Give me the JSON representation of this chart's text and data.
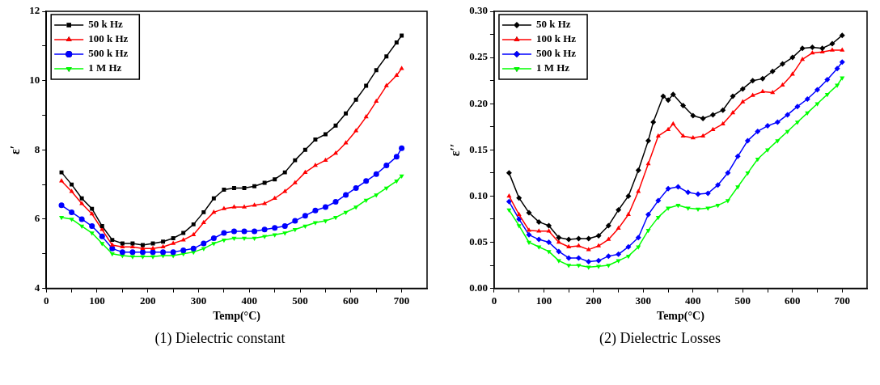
{
  "chart_data": [
    {
      "type": "line",
      "xlabel": "Temp(°C)",
      "ylabel": "ε′",
      "annotations": [
        "(1) Dielectric constant"
      ],
      "legend": "top left",
      "grid": false,
      "line_style": "solid",
      "xlim": [
        0,
        750
      ],
      "xticks": [
        0,
        {
          "value": 50,
          "label": null
        },
        100,
        {
          "value": 150,
          "label": null
        },
        200,
        {
          "value": 250,
          "label": null
        },
        300,
        {
          "value": 350,
          "label": null
        },
        400,
        {
          "value": 450,
          "label": null
        },
        500,
        {
          "value": 550,
          "label": null
        },
        600,
        {
          "value": 650,
          "label": null
        },
        700
      ],
      "ylim": [
        4,
        12
      ],
      "yticks": [
        4,
        {
          "value": 5,
          "label": null
        },
        6,
        {
          "value": 7,
          "label": null
        },
        8,
        {
          "value": 9,
          "label": null
        },
        10,
        {
          "value": 11,
          "label": null
        },
        12
      ],
      "x": [
        30,
        50,
        70,
        90,
        110,
        130,
        150,
        170,
        190,
        210,
        230,
        250,
        270,
        290,
        310,
        330,
        350,
        370,
        390,
        410,
        430,
        450,
        470,
        490,
        510,
        530,
        550,
        570,
        590,
        610,
        630,
        650,
        670,
        690,
        700
      ],
      "series": [
        {
          "name": "50 k Hz",
          "color": "#000000",
          "marker": "square",
          "values": [
            7.35,
            7.0,
            6.6,
            6.3,
            5.8,
            5.4,
            5.3,
            5.3,
            5.25,
            5.3,
            5.35,
            5.45,
            5.6,
            5.85,
            6.2,
            6.6,
            6.85,
            6.9,
            6.9,
            6.95,
            7.05,
            7.15,
            7.35,
            7.7,
            8.0,
            8.3,
            8.45,
            8.7,
            9.05,
            9.45,
            9.85,
            10.3,
            10.7,
            11.1,
            11.3
          ]
        },
        {
          "name": "100 k Hz",
          "color": "#ff0000",
          "marker": "triangle",
          "values": [
            7.1,
            6.8,
            6.45,
            6.15,
            5.7,
            5.25,
            5.2,
            5.2,
            5.15,
            5.15,
            5.2,
            5.3,
            5.4,
            5.55,
            5.9,
            6.2,
            6.3,
            6.35,
            6.35,
            6.4,
            6.45,
            6.6,
            6.8,
            7.05,
            7.35,
            7.55,
            7.7,
            7.9,
            8.2,
            8.55,
            8.95,
            9.4,
            9.85,
            10.15,
            10.35
          ]
        },
        {
          "name": "500 k Hz",
          "color": "#0000ff",
          "marker": "circle",
          "values": [
            6.4,
            6.2,
            6.0,
            5.8,
            5.5,
            5.15,
            5.05,
            5.05,
            5.05,
            5.05,
            5.05,
            5.05,
            5.1,
            5.15,
            5.3,
            5.45,
            5.6,
            5.65,
            5.65,
            5.65,
            5.7,
            5.75,
            5.8,
            5.95,
            6.1,
            6.25,
            6.35,
            6.5,
            6.7,
            6.9,
            7.1,
            7.3,
            7.55,
            7.8,
            8.05
          ]
        },
        {
          "name": "1 M Hz",
          "color": "#00ff00",
          "marker": "triangle-down",
          "values": [
            6.05,
            6.0,
            5.8,
            5.6,
            5.3,
            5.0,
            4.95,
            4.92,
            4.92,
            4.92,
            4.95,
            4.95,
            5.0,
            5.05,
            5.15,
            5.3,
            5.4,
            5.45,
            5.45,
            5.45,
            5.5,
            5.55,
            5.6,
            5.7,
            5.8,
            5.9,
            5.95,
            6.05,
            6.2,
            6.35,
            6.55,
            6.7,
            6.9,
            7.1,
            7.25
          ]
        }
      ]
    },
    {
      "type": "line",
      "xlabel": "Temp(°C)",
      "ylabel": "ε′′",
      "annotations": [
        "(2) Dielectric Losses"
      ],
      "legend": "top left",
      "grid": false,
      "line_style": "solid",
      "xlim": [
        0,
        750
      ],
      "xticks": [
        0,
        {
          "value": 50,
          "label": null
        },
        100,
        {
          "value": 150,
          "label": null
        },
        200,
        {
          "value": 250,
          "label": null
        },
        300,
        {
          "value": 350,
          "label": null
        },
        400,
        {
          "value": 450,
          "label": null
        },
        500,
        {
          "value": 550,
          "label": null
        },
        600,
        {
          "value": 650,
          "label": null
        },
        700
      ],
      "ylim": [
        0,
        0.3
      ],
      "yticks": [
        {
          "value": 0,
          "label": "0.00"
        },
        {
          "value": 0.025,
          "label": null
        },
        {
          "value": 0.05,
          "label": "0.05"
        },
        {
          "value": 0.075,
          "label": null
        },
        {
          "value": 0.1,
          "label": "0.10"
        },
        {
          "value": 0.125,
          "label": null
        },
        {
          "value": 0.15,
          "label": "0.15"
        },
        {
          "value": 0.175,
          "label": null
        },
        {
          "value": 0.2,
          "label": "0.20"
        },
        {
          "value": 0.225,
          "label": null
        },
        {
          "value": 0.25,
          "label": "0.25"
        },
        {
          "value": 0.275,
          "label": null
        },
        {
          "value": 0.3,
          "label": "0.30"
        }
      ],
      "series": [
        {
          "name": "50 k Hz",
          "color": "#000000",
          "marker": "diamond",
          "x": [
            30,
            50,
            70,
            90,
            110,
            130,
            150,
            170,
            190,
            210,
            230,
            250,
            270,
            290,
            310,
            320,
            340,
            350,
            360,
            380,
            400,
            420,
            440,
            460,
            480,
            500,
            520,
            540,
            560,
            580,
            600,
            620,
            640,
            660,
            680,
            700
          ],
          "values": [
            0.125,
            0.098,
            0.082,
            0.072,
            0.068,
            0.055,
            0.053,
            0.054,
            0.054,
            0.057,
            0.068,
            0.085,
            0.1,
            0.128,
            0.16,
            0.18,
            0.208,
            0.204,
            0.21,
            0.198,
            0.187,
            0.184,
            0.188,
            0.193,
            0.208,
            0.216,
            0.225,
            0.227,
            0.235,
            0.243,
            0.25,
            0.26,
            0.261,
            0.26,
            0.265,
            0.274
          ]
        },
        {
          "name": "100 k Hz",
          "color": "#ff0000",
          "marker": "triangle",
          "x": [
            30,
            50,
            70,
            90,
            110,
            130,
            150,
            170,
            190,
            210,
            230,
            250,
            270,
            290,
            310,
            330,
            350,
            360,
            380,
            400,
            420,
            440,
            460,
            480,
            500,
            520,
            540,
            560,
            580,
            600,
            620,
            640,
            660,
            680,
            700
          ],
          "values": [
            0.1,
            0.08,
            0.063,
            0.062,
            0.062,
            0.05,
            0.045,
            0.046,
            0.042,
            0.046,
            0.053,
            0.065,
            0.08,
            0.105,
            0.135,
            0.165,
            0.172,
            0.178,
            0.165,
            0.163,
            0.165,
            0.172,
            0.178,
            0.19,
            0.202,
            0.209,
            0.213,
            0.212,
            0.22,
            0.232,
            0.248,
            0.255,
            0.256,
            0.258,
            0.258
          ]
        },
        {
          "name": "500 k Hz",
          "color": "#0000ff",
          "marker": "diamond",
          "x": [
            30,
            50,
            70,
            90,
            110,
            130,
            150,
            170,
            190,
            210,
            230,
            250,
            270,
            290,
            310,
            330,
            350,
            370,
            390,
            410,
            430,
            450,
            470,
            490,
            510,
            530,
            550,
            570,
            590,
            610,
            630,
            650,
            670,
            690,
            700
          ],
          "values": [
            0.094,
            0.075,
            0.058,
            0.053,
            0.05,
            0.04,
            0.033,
            0.033,
            0.029,
            0.03,
            0.035,
            0.037,
            0.045,
            0.055,
            0.08,
            0.095,
            0.108,
            0.11,
            0.104,
            0.102,
            0.103,
            0.112,
            0.125,
            0.143,
            0.16,
            0.17,
            0.176,
            0.18,
            0.188,
            0.197,
            0.205,
            0.215,
            0.226,
            0.238,
            0.245
          ]
        },
        {
          "name": "1 M Hz",
          "color": "#00ff00",
          "marker": "triangle-down",
          "x": [
            30,
            50,
            70,
            90,
            110,
            130,
            150,
            170,
            190,
            210,
            230,
            250,
            270,
            290,
            310,
            330,
            350,
            370,
            390,
            410,
            430,
            450,
            470,
            490,
            510,
            530,
            550,
            570,
            590,
            610,
            630,
            650,
            670,
            690,
            700
          ],
          "values": [
            0.085,
            0.068,
            0.05,
            0.045,
            0.04,
            0.03,
            0.025,
            0.025,
            0.023,
            0.024,
            0.025,
            0.03,
            0.035,
            0.045,
            0.063,
            0.077,
            0.087,
            0.09,
            0.087,
            0.086,
            0.087,
            0.09,
            0.095,
            0.11,
            0.125,
            0.14,
            0.15,
            0.16,
            0.17,
            0.18,
            0.19,
            0.2,
            0.21,
            0.22,
            0.228
          ]
        }
      ]
    }
  ]
}
